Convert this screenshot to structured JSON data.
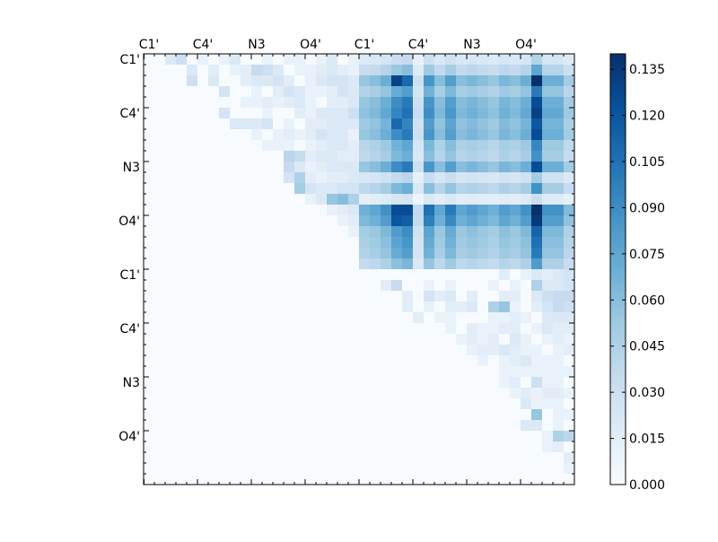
{
  "chart_data": {
    "type": "heatmap",
    "title": "",
    "xlabel": "",
    "ylabel": "",
    "n_rows": 40,
    "n_cols": 40,
    "matrix_shape": "upper-triangular",
    "x_tick_labels": [
      "C1'",
      "C4'",
      "N3",
      "O4'",
      "C1'",
      "C4'",
      "N3",
      "O4'"
    ],
    "y_tick_labels": [
      "C1'",
      "C4'",
      "N3",
      "O4'",
      "C1'",
      "C4'",
      "N3",
      "O4'"
    ],
    "x_axis_position": "top",
    "tick_label_index_start": 0,
    "tick_label_index_step": 5,
    "colormap": "Blues",
    "colormap_stops": [
      "#f7fbff",
      "#deebf7",
      "#c6dbef",
      "#9ecae1",
      "#6baed6",
      "#4292c6",
      "#2171b5",
      "#08519c",
      "#08306b"
    ],
    "colorbar": {
      "min": 0.0,
      "max": 0.14,
      "ticks": [
        "0.000",
        "0.015",
        "0.030",
        "0.045",
        "0.060",
        "0.075",
        "0.090",
        "0.105",
        "0.120",
        "0.135"
      ],
      "tick_values": [
        0.0,
        0.015,
        0.03,
        0.045,
        0.06,
        0.075,
        0.09,
        0.105,
        0.12,
        0.135
      ],
      "position": "right"
    },
    "values_note_levels": "approximate cell intensities read from color",
    "sparse_block": {
      "rows": [
        0,
        20
      ],
      "cols": [
        0,
        20
      ],
      "cells": [
        [
          0,
          2,
          0.02
        ],
        [
          0,
          3,
          0.03
        ],
        [
          0,
          5,
          0.01
        ],
        [
          0,
          7,
          0.01
        ],
        [
          0,
          8,
          0.02
        ],
        [
          0,
          11,
          0.01
        ],
        [
          0,
          13,
          0.01
        ],
        [
          0,
          14,
          0.01
        ],
        [
          0,
          16,
          0.01
        ],
        [
          0,
          17,
          0.02
        ],
        [
          0,
          19,
          0.01
        ],
        [
          1,
          4,
          0.02
        ],
        [
          1,
          6,
          0.015
        ],
        [
          1,
          8,
          0.01
        ],
        [
          1,
          9,
          0.015
        ],
        [
          1,
          10,
          0.035
        ],
        [
          1,
          11,
          0.03
        ],
        [
          1,
          12,
          0.02
        ],
        [
          1,
          14,
          0.01
        ],
        [
          1,
          15,
          0.01
        ],
        [
          1,
          16,
          0.015
        ],
        [
          1,
          17,
          0.02
        ],
        [
          1,
          18,
          0.015
        ],
        [
          1,
          19,
          0.01
        ],
        [
          2,
          4,
          0.03
        ],
        [
          2,
          6,
          0.02
        ],
        [
          2,
          9,
          0.015
        ],
        [
          2,
          10,
          0.02
        ],
        [
          2,
          11,
          0.02
        ],
        [
          2,
          12,
          0.025
        ],
        [
          2,
          13,
          0.015
        ],
        [
          2,
          15,
          0.01
        ],
        [
          2,
          16,
          0.02
        ],
        [
          2,
          17,
          0.025
        ],
        [
          2,
          18,
          0.025
        ],
        [
          2,
          19,
          0.02
        ],
        [
          3,
          7,
          0.025
        ],
        [
          3,
          10,
          0.01
        ],
        [
          3,
          12,
          0.015
        ],
        [
          3,
          13,
          0.025
        ],
        [
          3,
          14,
          0.02
        ],
        [
          3,
          15,
          0.01
        ],
        [
          3,
          16,
          0.01
        ],
        [
          3,
          17,
          0.015
        ],
        [
          3,
          18,
          0.025
        ],
        [
          3,
          19,
          0.02
        ],
        [
          4,
          9,
          0.01
        ],
        [
          4,
          10,
          0.01
        ],
        [
          4,
          11,
          0.015
        ],
        [
          4,
          12,
          0.01
        ],
        [
          4,
          13,
          0.015
        ],
        [
          4,
          14,
          0.02
        ],
        [
          4,
          15,
          0.01
        ],
        [
          4,
          17,
          0.015
        ],
        [
          4,
          18,
          0.015
        ],
        [
          4,
          19,
          0.02
        ],
        [
          5,
          7,
          0.025
        ],
        [
          5,
          11,
          0.01
        ],
        [
          5,
          14,
          0.015
        ],
        [
          5,
          15,
          0.01
        ],
        [
          5,
          16,
          0.02
        ],
        [
          5,
          17,
          0.02
        ],
        [
          5,
          18,
          0.02
        ],
        [
          5,
          19,
          0.03
        ],
        [
          6,
          8,
          0.02
        ],
        [
          6,
          9,
          0.02
        ],
        [
          6,
          10,
          0.02
        ],
        [
          6,
          11,
          0.025
        ],
        [
          6,
          13,
          0.01
        ],
        [
          6,
          15,
          0.015
        ],
        [
          6,
          16,
          0.015
        ],
        [
          6,
          17,
          0.02
        ],
        [
          6,
          18,
          0.02
        ],
        [
          6,
          19,
          0.02
        ],
        [
          7,
          10,
          0.01
        ],
        [
          7,
          12,
          0.01
        ],
        [
          7,
          13,
          0.015
        ],
        [
          7,
          14,
          0.01
        ],
        [
          7,
          15,
          0.015
        ],
        [
          7,
          16,
          0.025
        ],
        [
          7,
          17,
          0.02
        ],
        [
          7,
          18,
          0.02
        ],
        [
          7,
          19,
          0.01
        ],
        [
          8,
          11,
          0.01
        ],
        [
          8,
          12,
          0.01
        ],
        [
          8,
          13,
          0.01
        ],
        [
          8,
          15,
          0.01
        ],
        [
          8,
          16,
          0.015
        ],
        [
          8,
          17,
          0.02
        ],
        [
          8,
          18,
          0.02
        ],
        [
          8,
          19,
          0.015
        ],
        [
          9,
          13,
          0.04
        ],
        [
          9,
          14,
          0.035
        ],
        [
          9,
          15,
          0.015
        ],
        [
          9,
          16,
          0.02
        ],
        [
          9,
          17,
          0.02
        ],
        [
          9,
          18,
          0.015
        ],
        [
          9,
          19,
          0.015
        ],
        [
          10,
          13,
          0.035
        ],
        [
          10,
          14,
          0.02
        ],
        [
          10,
          15,
          0.01
        ],
        [
          10,
          16,
          0.015
        ],
        [
          10,
          17,
          0.02
        ],
        [
          10,
          18,
          0.02
        ],
        [
          10,
          19,
          0.02
        ],
        [
          11,
          13,
          0.025
        ],
        [
          11,
          14,
          0.045
        ],
        [
          11,
          15,
          0.015
        ],
        [
          11,
          16,
          0.01
        ],
        [
          11,
          17,
          0.015
        ],
        [
          11,
          18,
          0.015
        ],
        [
          11,
          19,
          0.02
        ],
        [
          12,
          14,
          0.05
        ],
        [
          12,
          15,
          0.025
        ],
        [
          12,
          16,
          0.02
        ],
        [
          12,
          17,
          0.02
        ],
        [
          12,
          18,
          0.025
        ],
        [
          12,
          19,
          0.025
        ],
        [
          13,
          15,
          0.01
        ],
        [
          13,
          16,
          0.02
        ],
        [
          13,
          17,
          0.055
        ],
        [
          13,
          18,
          0.06
        ],
        [
          13,
          19,
          0.045
        ],
        [
          14,
          17,
          0.01
        ],
        [
          14,
          18,
          0.015
        ],
        [
          14,
          19,
          0.02
        ],
        [
          15,
          18,
          0.01
        ],
        [
          15,
          19,
          0.015
        ],
        [
          16,
          19,
          0.01
        ]
      ]
    },
    "dense_block": {
      "rows": [
        0,
        20
      ],
      "cols": [
        20,
        40
      ],
      "base_level": 0.06,
      "column_levels": [
        0.055,
        0.06,
        0.07,
        0.09,
        0.1,
        0.03,
        0.085,
        0.06,
        0.08,
        0.06,
        0.065,
        0.06,
        0.055,
        0.065,
        0.06,
        0.07,
        0.125,
        0.07,
        0.07,
        0.05
      ],
      "row_factors": [
        0.35,
        0.6,
        1.0,
        0.8,
        1.0,
        1.05,
        0.95,
        1.0,
        0.75,
        0.7,
        1.0,
        0.4,
        0.7,
        0.25,
        1.25,
        1.15,
        0.9,
        0.85,
        0.8,
        0.65
      ],
      "highlight_cells": [
        [
          2,
          23,
          0.13
        ],
        [
          14,
          23,
          0.125
        ],
        [
          15,
          23,
          0.12
        ],
        [
          2,
          36,
          0.14
        ],
        [
          14,
          36,
          0.14
        ],
        [
          15,
          36,
          0.135
        ],
        [
          2,
          24,
          0.11
        ],
        [
          6,
          23,
          0.11
        ]
      ]
    },
    "lower_block": {
      "rows": [
        20,
        40
      ],
      "cols": [
        20,
        40
      ],
      "cells": [
        [
          20,
          33,
          0.015
        ],
        [
          20,
          35,
          0.01
        ],
        [
          20,
          36,
          0.02
        ],
        [
          20,
          37,
          0.015
        ],
        [
          20,
          38,
          0.02
        ],
        [
          20,
          39,
          0.025
        ],
        [
          21,
          22,
          0.015
        ],
        [
          21,
          23,
          0.035
        ],
        [
          21,
          26,
          0.01
        ],
        [
          21,
          28,
          0.01
        ],
        [
          21,
          32,
          0.01
        ],
        [
          21,
          34,
          0.01
        ],
        [
          21,
          36,
          0.045
        ],
        [
          21,
          37,
          0.02
        ],
        [
          21,
          38,
          0.02
        ],
        [
          21,
          39,
          0.025
        ],
        [
          22,
          24,
          0.015
        ],
        [
          22,
          26,
          0.025
        ],
        [
          22,
          27,
          0.015
        ],
        [
          22,
          28,
          0.02
        ],
        [
          22,
          30,
          0.015
        ],
        [
          22,
          33,
          0.015
        ],
        [
          22,
          34,
          0.015
        ],
        [
          22,
          36,
          0.02
        ],
        [
          22,
          37,
          0.03
        ],
        [
          22,
          38,
          0.035
        ],
        [
          22,
          39,
          0.035
        ],
        [
          23,
          24,
          0.015
        ],
        [
          23,
          26,
          0.01
        ],
        [
          23,
          28,
          0.015
        ],
        [
          23,
          29,
          0.015
        ],
        [
          23,
          30,
          0.02
        ],
        [
          23,
          32,
          0.045
        ],
        [
          23,
          33,
          0.055
        ],
        [
          23,
          34,
          0.01
        ],
        [
          23,
          36,
          0.015
        ],
        [
          23,
          37,
          0.025
        ],
        [
          23,
          38,
          0.035
        ],
        [
          23,
          39,
          0.03
        ],
        [
          24,
          25,
          0.015
        ],
        [
          24,
          27,
          0.01
        ],
        [
          24,
          28,
          0.01
        ],
        [
          24,
          32,
          0.01
        ],
        [
          24,
          33,
          0.01
        ],
        [
          24,
          34,
          0.015
        ],
        [
          24,
          35,
          0.01
        ],
        [
          24,
          37,
          0.02
        ],
        [
          24,
          38,
          0.02
        ],
        [
          24,
          39,
          0.02
        ],
        [
          25,
          28,
          0.01
        ],
        [
          25,
          30,
          0.015
        ],
        [
          25,
          31,
          0.01
        ],
        [
          25,
          32,
          0.01
        ],
        [
          25,
          33,
          0.015
        ],
        [
          25,
          34,
          0.015
        ],
        [
          25,
          36,
          0.01
        ],
        [
          25,
          37,
          0.02
        ],
        [
          25,
          38,
          0.015
        ],
        [
          25,
          39,
          0.015
        ],
        [
          26,
          29,
          0.01
        ],
        [
          26,
          30,
          0.015
        ],
        [
          26,
          31,
          0.01
        ],
        [
          26,
          32,
          0.015
        ],
        [
          26,
          34,
          0.02
        ],
        [
          26,
          35,
          0.01
        ],
        [
          26,
          37,
          0.01
        ],
        [
          26,
          38,
          0.015
        ],
        [
          26,
          39,
          0.01
        ],
        [
          27,
          30,
          0.01
        ],
        [
          27,
          31,
          0.015
        ],
        [
          27,
          32,
          0.015
        ],
        [
          27,
          33,
          0.02
        ],
        [
          27,
          34,
          0.015
        ],
        [
          27,
          35,
          0.01
        ],
        [
          27,
          36,
          0.01
        ],
        [
          27,
          38,
          0.01
        ],
        [
          27,
          39,
          0.015
        ],
        [
          28,
          31,
          0.01
        ],
        [
          28,
          33,
          0.01
        ],
        [
          28,
          34,
          0.015
        ],
        [
          28,
          35,
          0.02
        ],
        [
          28,
          36,
          0.01
        ],
        [
          28,
          37,
          0.01
        ],
        [
          28,
          38,
          0.01
        ],
        [
          29,
          33,
          0.01
        ],
        [
          29,
          34,
          0.01
        ],
        [
          29,
          35,
          0.01
        ],
        [
          29,
          36,
          0.01
        ],
        [
          29,
          37,
          0.01
        ],
        [
          29,
          38,
          0.01
        ],
        [
          29,
          39,
          0.01
        ],
        [
          30,
          33,
          0.01
        ],
        [
          30,
          34,
          0.015
        ],
        [
          30,
          36,
          0.03
        ],
        [
          30,
          37,
          0.01
        ],
        [
          30,
          38,
          0.01
        ],
        [
          31,
          34,
          0.01
        ],
        [
          31,
          35,
          0.015
        ],
        [
          31,
          36,
          0.01
        ],
        [
          31,
          37,
          0.015
        ],
        [
          31,
          38,
          0.015
        ],
        [
          31,
          39,
          0.01
        ],
        [
          32,
          35,
          0.02
        ],
        [
          32,
          36,
          0.01
        ],
        [
          32,
          37,
          0.01
        ],
        [
          32,
          38,
          0.01
        ],
        [
          33,
          36,
          0.055
        ],
        [
          33,
          38,
          0.01
        ],
        [
          33,
          39,
          0.01
        ],
        [
          34,
          35,
          0.02
        ],
        [
          34,
          36,
          0.02
        ],
        [
          34,
          38,
          0.01
        ],
        [
          35,
          37,
          0.01
        ],
        [
          35,
          38,
          0.045
        ],
        [
          35,
          39,
          0.04
        ],
        [
          36,
          37,
          0.01
        ],
        [
          36,
          38,
          0.015
        ],
        [
          37,
          39,
          0.015
        ],
        [
          38,
          39,
          0.01
        ]
      ]
    }
  }
}
